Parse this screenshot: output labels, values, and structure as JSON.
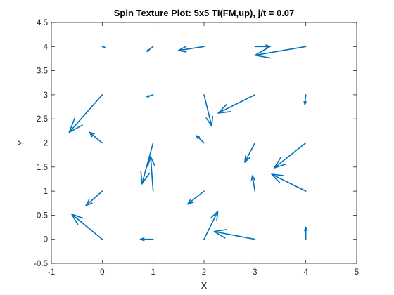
{
  "chart_data": {
    "type": "quiver",
    "title": "Spin Texture Plot: 5x5 TI(FM,up), j/t = 0.07",
    "xlabel": "X",
    "ylabel": "Y",
    "xlim": [
      -1,
      5
    ],
    "ylim": [
      -0.5,
      4.5
    ],
    "xticks": [
      "-1",
      "0",
      "1",
      "2",
      "3",
      "4",
      "5"
    ],
    "yticks": [
      "-0.5",
      "0",
      "0.5",
      "1",
      "1.5",
      "2",
      "2.5",
      "3",
      "3.5",
      "4",
      "4.5"
    ],
    "grid": false,
    "color": "#0072BD",
    "arrows": [
      {
        "x": 0,
        "y": 0,
        "u": -0.6,
        "v": 0.52
      },
      {
        "x": 1,
        "y": 0,
        "u": -0.25,
        "v": 0.0
      },
      {
        "x": 2,
        "y": 0,
        "u": 0.27,
        "v": 0.58
      },
      {
        "x": 3,
        "y": 0,
        "u": -0.8,
        "v": 0.16
      },
      {
        "x": 4,
        "y": 0,
        "u": 0.0,
        "v": 0.25
      },
      {
        "x": 0,
        "y": 1,
        "u": -0.32,
        "v": -0.3
      },
      {
        "x": 1,
        "y": 1,
        "u": -0.05,
        "v": 0.72
      },
      {
        "x": 2,
        "y": 1,
        "u": -0.32,
        "v": -0.27
      },
      {
        "x": 3,
        "y": 1,
        "u": -0.05,
        "v": 0.32
      },
      {
        "x": 4,
        "y": 1,
        "u": -0.67,
        "v": 0.35
      },
      {
        "x": 0,
        "y": 2,
        "u": -0.25,
        "v": 0.22
      },
      {
        "x": 1,
        "y": 2,
        "u": -0.22,
        "v": -0.85
      },
      {
        "x": 2,
        "y": 2,
        "u": -0.15,
        "v": 0.15
      },
      {
        "x": 3,
        "y": 2,
        "u": -0.2,
        "v": -0.4
      },
      {
        "x": 4,
        "y": 2,
        "u": -0.62,
        "v": -0.52
      },
      {
        "x": 0,
        "y": 3,
        "u": -0.65,
        "v": -0.78
      },
      {
        "x": 1,
        "y": 3,
        "u": -0.12,
        "v": -0.04
      },
      {
        "x": 2,
        "y": 3,
        "u": 0.15,
        "v": -0.65
      },
      {
        "x": 3,
        "y": 3,
        "u": -0.72,
        "v": -0.38
      },
      {
        "x": 4,
        "y": 3,
        "u": -0.02,
        "v": -0.2
      },
      {
        "x": 0,
        "y": 4,
        "u": 0.05,
        "v": -0.02
      },
      {
        "x": 1,
        "y": 4,
        "u": -0.12,
        "v": -0.1
      },
      {
        "x": 2,
        "y": 4,
        "u": -0.5,
        "v": -0.08
      },
      {
        "x": 3,
        "y": 4,
        "u": 0.3,
        "v": 0.0
      },
      {
        "x": 4,
        "y": 4,
        "u": -1.0,
        "v": -0.18
      }
    ]
  }
}
